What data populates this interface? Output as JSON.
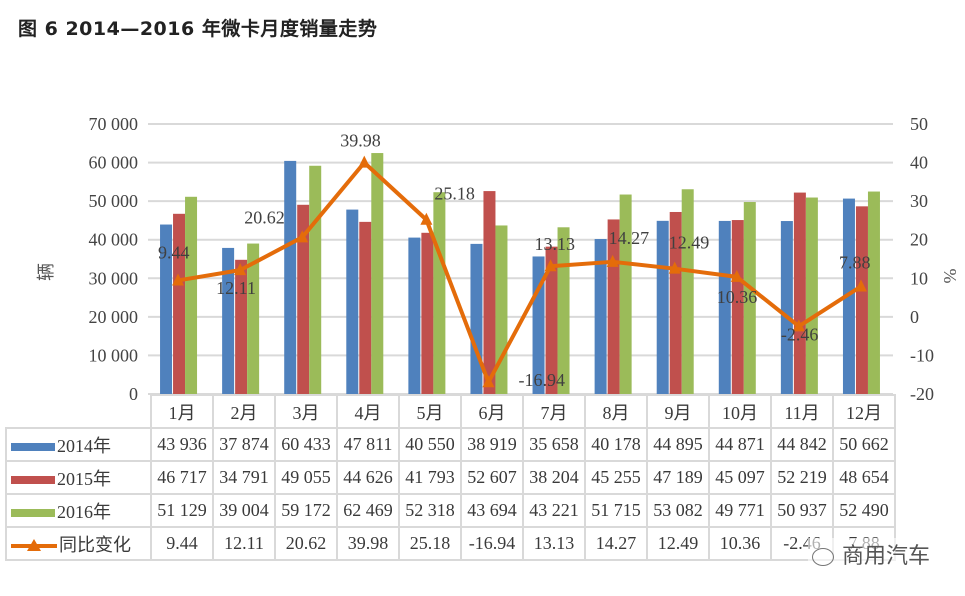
{
  "title": "图 6   2014—2016 年微卡月度销量走势",
  "watermark": "商用汽车",
  "colors": {
    "s2014": "#4f81bd",
    "s2015": "#c0504d",
    "s2016": "#9bbb59",
    "yoy": "#e46c0a",
    "grid": "#d9d9d9"
  },
  "axes": {
    "left_label": "辆",
    "right_label": "%",
    "left_ticks": [
      "70 000",
      "60 000",
      "50 000",
      "40 000",
      "30 000",
      "20 000",
      "10 000",
      "0"
    ],
    "right_ticks": [
      "50",
      "40",
      "30",
      "20",
      "10",
      "0",
      "-10",
      "-20"
    ]
  },
  "table": {
    "months": [
      "1月",
      "2月",
      "3月",
      "4月",
      "5月",
      "6月",
      "7月",
      "8月",
      "9月",
      "10月",
      "11月",
      "12月"
    ],
    "rows": [
      {
        "label": "2014年",
        "values": [
          "43 936",
          "37 874",
          "60 433",
          "47 811",
          "40 550",
          "38 919",
          "35 658",
          "40 178",
          "44 895",
          "44 871",
          "44 842",
          "50 662"
        ]
      },
      {
        "label": "2015年",
        "values": [
          "46 717",
          "34 791",
          "49 055",
          "44 626",
          "41 793",
          "52 607",
          "38 204",
          "45 255",
          "47 189",
          "45 097",
          "52 219",
          "48 654"
        ]
      },
      {
        "label": "2016年",
        "values": [
          "51 129",
          "39 004",
          "59 172",
          "62 469",
          "52 318",
          "43 694",
          "43 221",
          "51 715",
          "53 082",
          "49 771",
          "50 937",
          "52 490"
        ]
      },
      {
        "label": "同比变化",
        "values": [
          "9.44",
          "12.11",
          "20.62",
          "39.98",
          "25.18",
          "-16.94",
          "13.13",
          "14.27",
          "12.49",
          "10.36",
          "-2.46",
          "7.88"
        ]
      }
    ]
  },
  "chart_data": {
    "type": "bar",
    "title": "2014—2016 年微卡月度销量走势",
    "categories": [
      "1月",
      "2月",
      "3月",
      "4月",
      "5月",
      "6月",
      "7月",
      "8月",
      "9月",
      "10月",
      "11月",
      "12月"
    ],
    "series": [
      {
        "name": "2014年",
        "type": "bar",
        "axis": "left",
        "values": [
          43936,
          37874,
          60433,
          47811,
          40550,
          38919,
          35658,
          40178,
          44895,
          44871,
          44842,
          50662
        ]
      },
      {
        "name": "2015年",
        "type": "bar",
        "axis": "left",
        "values": [
          46717,
          34791,
          49055,
          44626,
          41793,
          52607,
          38204,
          45255,
          47189,
          45097,
          52219,
          48654
        ]
      },
      {
        "name": "2016年",
        "type": "bar",
        "axis": "left",
        "values": [
          51129,
          39004,
          59172,
          62469,
          52318,
          43694,
          43221,
          51715,
          53082,
          49771,
          50937,
          52490
        ]
      },
      {
        "name": "同比变化",
        "type": "line",
        "axis": "right",
        "values": [
          9.44,
          12.11,
          20.62,
          39.98,
          25.18,
          -16.94,
          13.13,
          14.27,
          12.49,
          10.36,
          -2.46,
          7.88
        ]
      }
    ],
    "xlabel": "",
    "ylabel": "辆",
    "ylabel_right": "%",
    "ylim": [
      0,
      70000
    ],
    "ylim_right": [
      -20,
      50
    ],
    "grid": true,
    "legend_position": "data-table"
  }
}
